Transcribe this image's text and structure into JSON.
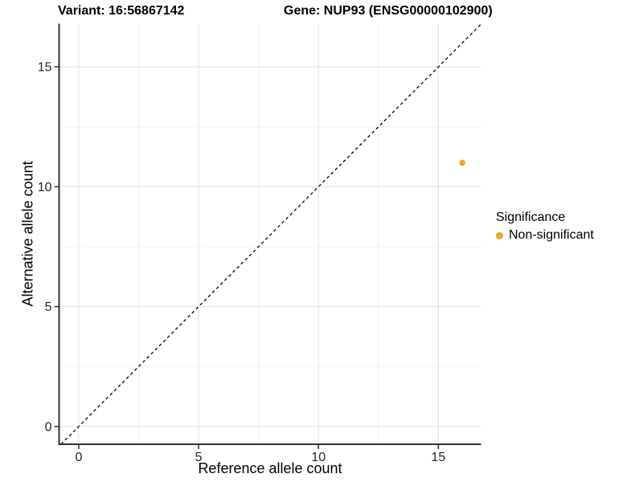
{
  "titles": {
    "left": "Variant: 16:56867142",
    "right": "Gene: NUP93 (ENSG00000102900)"
  },
  "chart_data": {
    "type": "scatter",
    "xlabel": "Reference allele count",
    "ylabel": "Alternative allele count",
    "x_ticks": [
      0,
      5,
      10,
      15
    ],
    "y_ticks": [
      0,
      5,
      10,
      15
    ],
    "x_minor_ticks": [
      2.5,
      7.5,
      12.5
    ],
    "y_minor_ticks": [
      2.5,
      7.5,
      12.5
    ],
    "xlim": [
      -0.82,
      16.78
    ],
    "ylim": [
      -0.74,
      16.8
    ],
    "grid": true,
    "reference_line": {
      "type": "identity",
      "style": "dashed",
      "color": "#000000"
    },
    "series": [
      {
        "name": "Non-significant",
        "color": "#F9A01E",
        "points": [
          {
            "x": 16,
            "y": 11
          }
        ]
      }
    ],
    "legend": {
      "title": "Significance",
      "position": "right",
      "entries": [
        {
          "label": "Non-significant",
          "color": "#F9A01E"
        }
      ]
    }
  },
  "colors": {
    "background": "#FFFFFF",
    "point": "#F9A01E",
    "axis": "#303030",
    "tick_text": "#262626",
    "grid_major": "#E4E4E4",
    "grid_minor": "#F1F1F1",
    "text": "#000000"
  }
}
